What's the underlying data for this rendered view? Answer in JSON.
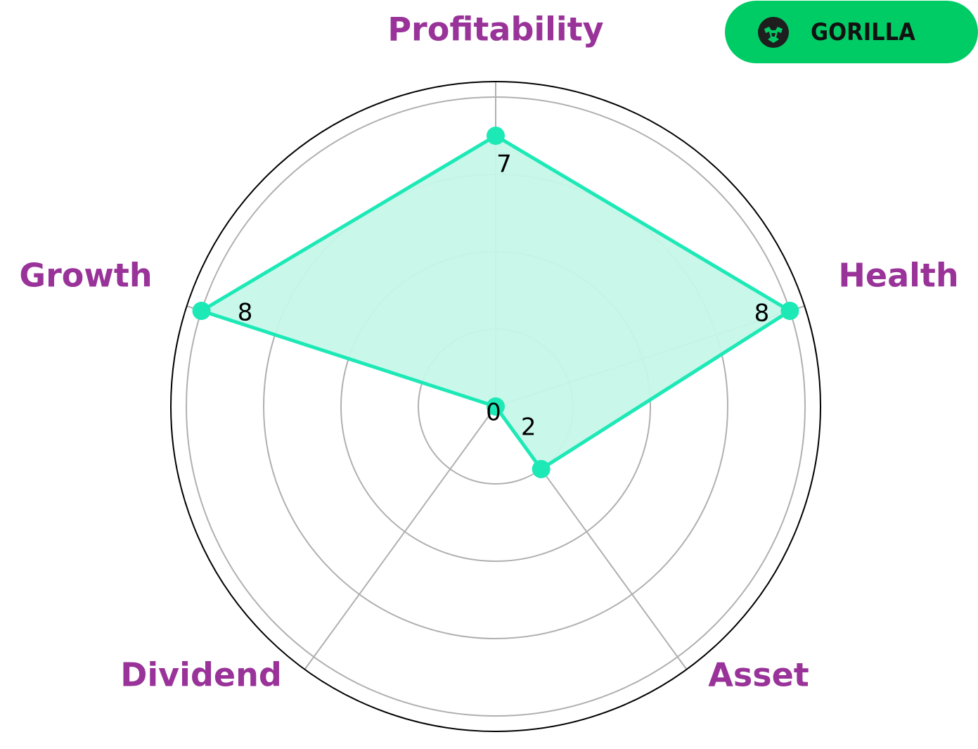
{
  "brand": {
    "name": "GORILLA",
    "logo_icon": "gorilla-head-icon",
    "badge_color": "#00cc66"
  },
  "chart_data": {
    "type": "radar",
    "categories": [
      "Profitability",
      "Health",
      "Asset",
      "Dividend",
      "Growth"
    ],
    "values": [
      7,
      8,
      2,
      0,
      8
    ],
    "value_labels": [
      "7",
      "8",
      "2",
      "0",
      "8"
    ],
    "rlim": [
      0,
      8.4
    ],
    "rgrid": [
      2,
      4,
      6,
      8
    ],
    "grid": true,
    "colors": {
      "line": "#1de9b6",
      "fill": "#c6f7e9",
      "label": "#993399",
      "grid": "#b0b0b0"
    }
  }
}
